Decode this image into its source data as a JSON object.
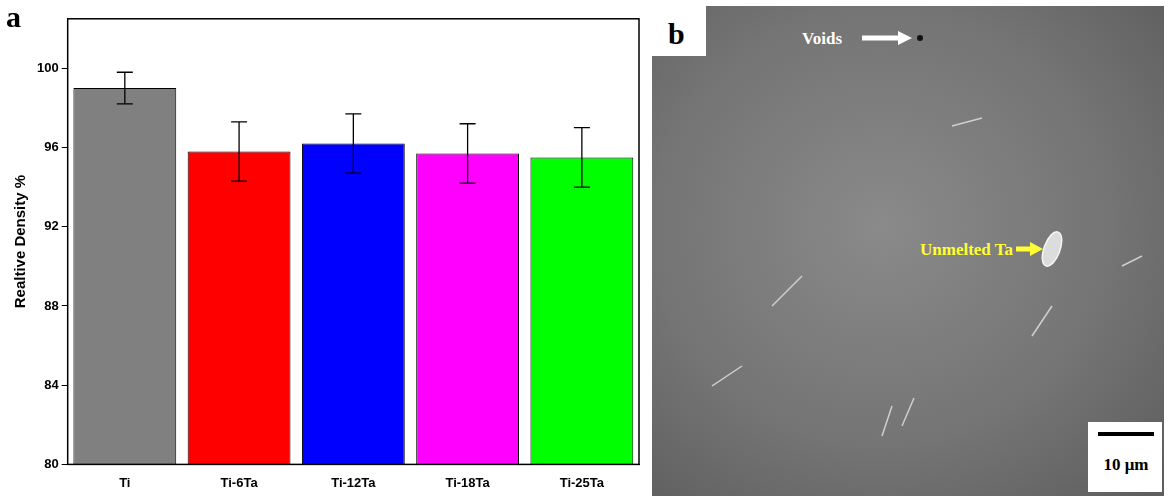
{
  "chart_data": {
    "type": "bar",
    "panel_label": "a",
    "y_label": "Realtive Density %",
    "categories": [
      "Ti",
      "Ti-6Ta",
      "Ti-12Ta",
      "Ti-18Ta",
      "Ti-25Ta"
    ],
    "values": [
      99.0,
      95.8,
      96.2,
      95.7,
      95.5
    ],
    "errors": [
      0.8,
      1.5,
      1.5,
      1.5,
      1.5
    ],
    "colors": [
      "#808080",
      "#ff0000",
      "#0000ff",
      "#ff00ff",
      "#00ff00"
    ],
    "ylim": [
      80,
      102.5
    ],
    "yticks": [
      80,
      84,
      88,
      92,
      96,
      100
    ],
    "grid": false
  },
  "micrograph": {
    "panel_label": "b",
    "annotations": [
      {
        "text": "Voids",
        "color": "#ffffff"
      },
      {
        "text": "Unmelted Ta",
        "color": "#ffff33"
      }
    ],
    "scale_bar": "10 μm"
  }
}
